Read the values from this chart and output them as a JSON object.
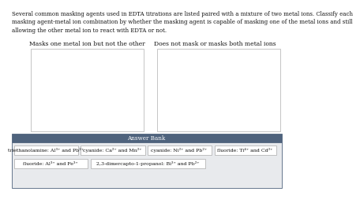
{
  "description_lines": "Several common masking agents used in EDTA titrations are listed paired with a mixture of two metal ions. Classify each\nmasking agent-metal ion combination by whether the masking agent is capable of masking one of the metal ions and still\nallowing the other metal ion to react with EDTA or not.",
  "left_box_title": "Masks one metal ion but not the other",
  "right_box_title": "Does not mask or masks both metal ions",
  "answer_bank_label": "Answer Bank",
  "answer_bank_bg": "#4f637d",
  "answer_bank_text_color": "#ffffff",
  "answer_items_row1": [
    "triethanolamine: Al³⁺ and Pb²⁺",
    "cyanide: Ca²⁺ and Mn²⁺",
    "cyanide: Ni²⁺ and Pb²⁺",
    "fluoride: Ti⁴⁺ and Cd²⁺"
  ],
  "answer_items_row2": [
    "fluoride: Al³⁺ and Fe³⁺",
    "2,3-dimercapto-1-propanol: Bi³⁺ and Pb²⁺"
  ],
  "box_bg": "#ffffff",
  "box_border": "#bbbbbb",
  "item_bg": "#ffffff",
  "item_border": "#aaaaaa",
  "page_bg": "#ffffff",
  "bank_body_bg": "#e8eaed",
  "bank_border": "#4f637d",
  "font_size_desc": 5.0,
  "font_size_title": 5.5,
  "font_size_bank_label": 5.2,
  "font_size_item": 4.5
}
